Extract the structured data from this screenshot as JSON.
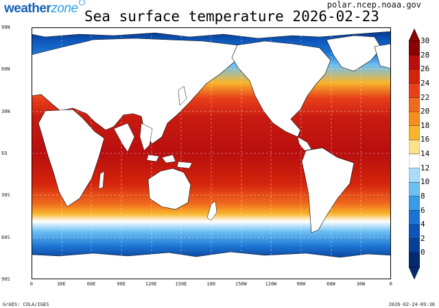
{
  "brand": {
    "part1": "weather",
    "part2": "zone"
  },
  "title": "Sea surface temperature 2026-02-23",
  "source": "polar.ncep.noaa.gov",
  "footer": {
    "left": "GrADS: COLA/IGES",
    "right": "2026-02-24-09:38"
  },
  "lat_labels": [
    "90N",
    "60N",
    "30N",
    "EQ",
    "30S",
    "60S",
    "90S"
  ],
  "lon_labels": [
    "0",
    "30E",
    "60E",
    "90E",
    "120E",
    "150E",
    "180",
    "150W",
    "120W",
    "90W",
    "60W",
    "30W",
    "0"
  ],
  "colorbar": {
    "labels": [
      "30",
      "28",
      "26",
      "24",
      "22",
      "20",
      "18",
      "16",
      "14",
      "12",
      "10",
      "8",
      "6",
      "4",
      "2",
      "0"
    ],
    "colors": [
      "#8b0000",
      "#b80e0e",
      "#d4240c",
      "#e8401a",
      "#f06a1e",
      "#f58e1e",
      "#f7b52c",
      "#fde08a",
      "#ffffff",
      "#a8dcfa",
      "#6ec0f2",
      "#3a9be6",
      "#1c74d2",
      "#0d55b8",
      "#083f96",
      "#062a70"
    ]
  }
}
